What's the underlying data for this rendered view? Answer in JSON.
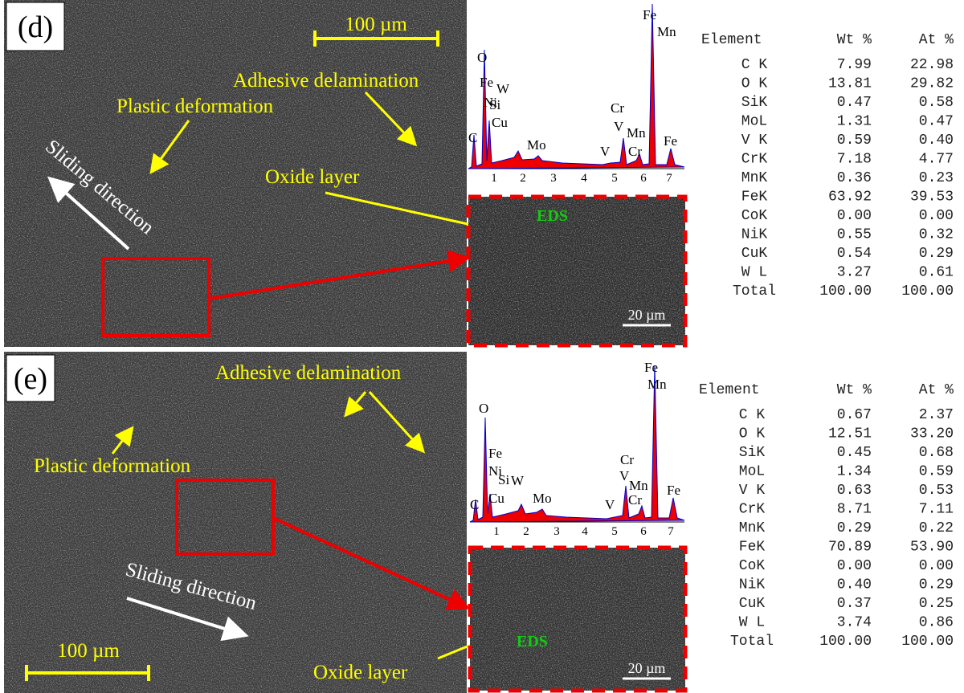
{
  "panels": [
    {
      "label": "(d)",
      "scale_bar": "100 µm",
      "annotations": {
        "adhesive": "Adhesive delamination",
        "plastic": "Plastic deformation",
        "sliding": "Sliding direction",
        "oxide": "Oxide layer"
      },
      "spectrum": {
        "peak_labels": [
          "Fe",
          "Mn",
          "O",
          "Fe",
          "Ni",
          "W",
          "Si",
          "Cu",
          "C",
          "Mo",
          "V",
          "Cr",
          "V",
          "Mn",
          "Cr",
          "Fe"
        ],
        "xticks": [
          1,
          2,
          3,
          4,
          5,
          6,
          7
        ]
      },
      "inset": {
        "label": "EDS",
        "scale_bar": "20 µm"
      },
      "table": {
        "header": [
          "Element",
          "Wt %",
          "At %"
        ],
        "rows": [
          [
            "C K",
            "7.99",
            "22.98"
          ],
          [
            "O K",
            "13.81",
            "29.82"
          ],
          [
            "SiK",
            "0.47",
            "0.58"
          ],
          [
            "MoL",
            "1.31",
            "0.47"
          ],
          [
            "V K",
            "0.59",
            "0.40"
          ],
          [
            "CrK",
            "7.18",
            "4.77"
          ],
          [
            "MnK",
            "0.36",
            "0.23"
          ],
          [
            "FeK",
            "63.92",
            "39.53"
          ],
          [
            "CoK",
            "0.00",
            "0.00"
          ],
          [
            "NiK",
            "0.55",
            "0.32"
          ],
          [
            "CuK",
            "0.54",
            "0.29"
          ],
          [
            "W L",
            "3.27",
            "0.61"
          ],
          [
            "Total",
            "100.00",
            "100.00"
          ]
        ]
      }
    },
    {
      "label": "(e)",
      "scale_bar": "100 µm",
      "annotations": {
        "adhesive": "Adhesive delamination",
        "plastic": "Plastic deformation",
        "sliding": "Sliding direction",
        "oxide": "Oxide layer"
      },
      "spectrum": {
        "peak_labels": [
          "Fe",
          "Mn",
          "O",
          "Fe",
          "Ni",
          "W",
          "Si",
          "Cu",
          "C",
          "Mo",
          "V",
          "Cr",
          "V",
          "Mn",
          "Cr",
          "Fe"
        ],
        "xticks": [
          1,
          2,
          3,
          4,
          5,
          6,
          7
        ]
      },
      "inset": {
        "label": "EDS",
        "scale_bar": "20 µm"
      },
      "table": {
        "header": [
          "Element",
          "Wt %",
          "At %"
        ],
        "rows": [
          [
            "C K",
            "0.67",
            "2.37"
          ],
          [
            "O K",
            "12.51",
            "33.20"
          ],
          [
            "SiK",
            "0.45",
            "0.68"
          ],
          [
            "MoL",
            "1.34",
            "0.59"
          ],
          [
            "V K",
            "0.63",
            "0.53"
          ],
          [
            "CrK",
            "8.71",
            "7.11"
          ],
          [
            "MnK",
            "0.29",
            "0.22"
          ],
          [
            "FeK",
            "70.89",
            "53.90"
          ],
          [
            "CoK",
            "0.00",
            "0.00"
          ],
          [
            "NiK",
            "0.40",
            "0.29"
          ],
          [
            "CuK",
            "0.37",
            "0.25"
          ],
          [
            "W L",
            "3.74",
            "0.86"
          ],
          [
            "Total",
            "100.00",
            "100.00"
          ]
        ]
      }
    }
  ]
}
